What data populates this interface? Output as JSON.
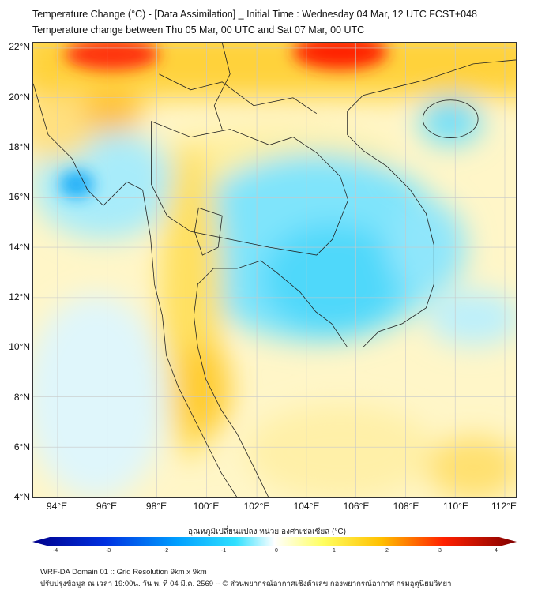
{
  "title": {
    "line1": "Temperature Change (°C) - [Data Assimilation] _ Initial Time : Wednesday 04 Mar, 12 UTC FCST+048",
    "line2": "Temperature change between Thu 05 Mar, 00 UTC and Sat 07 Mar, 00 UTC"
  },
  "map": {
    "lat_labels": [
      "22°N",
      "20°N",
      "18°N",
      "16°N",
      "14°N",
      "12°N",
      "10°N",
      "8°N",
      "6°N",
      "4°N"
    ],
    "lon_labels": [
      "94°E",
      "96°E",
      "98°E",
      "100°E",
      "102°E",
      "104°E",
      "106°E",
      "108°E",
      "110°E",
      "112°E"
    ],
    "lat_range": [
      4,
      22
    ],
    "lon_range": [
      93,
      112.4
    ]
  },
  "colorbar": {
    "title": "อุณหภูมิเปลี่ยนแปลง หน่วย องศาเซลเซียส (°C)",
    "ticks": [
      "-4",
      "-3",
      "-2",
      "-1",
      "0",
      "1",
      "2",
      "3",
      "4"
    ],
    "range": [
      -4,
      4
    ],
    "colors": [
      "#00008b",
      "#0030e0",
      "#00a0ff",
      "#30e0ff",
      "#ffffff",
      "#ffff60",
      "#ffc000",
      "#ff2000",
      "#800000"
    ]
  },
  "footer": {
    "line1": "WRF-DA Domain 01 :: Grid Resolution 9km x 9km",
    "line2": "ปรับปรุงข้อมูล ณ เวลา 19:00น. วัน พ. ที่ 04 มี.ค. 2569 -- © ส่วนพยากรณ์อากาศเชิงตัวเลข กองพยากรณ์อากาศ กรมอุตุนิยมวิทยา"
  }
}
